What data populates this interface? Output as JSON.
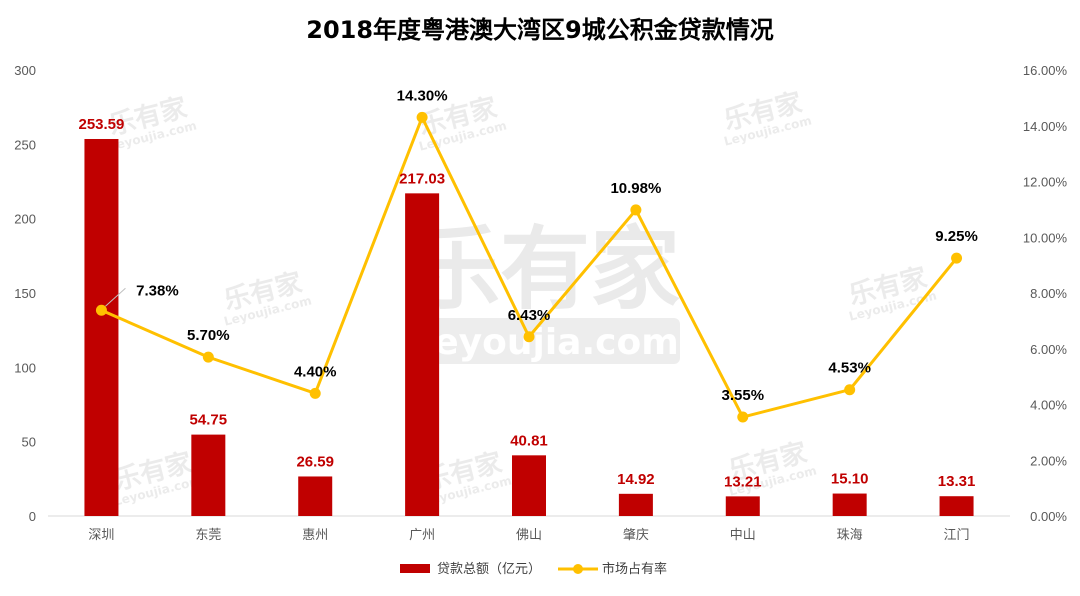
{
  "chart_data": {
    "type": "bar",
    "title": "2018年度粤港澳大湾区9城公积金贷款情况",
    "categories": [
      "深圳",
      "东莞",
      "惠州",
      "广州",
      "佛山",
      "肇庆",
      "中山",
      "珠海",
      "江门"
    ],
    "series": [
      {
        "name": "贷款总额（亿元）",
        "type": "bar",
        "axis": "left",
        "color": "#c00000",
        "values": [
          253.59,
          54.75,
          26.59,
          217.03,
          40.81,
          14.92,
          13.21,
          15.1,
          13.31
        ],
        "labels": [
          "253.59",
          "54.75",
          "26.59",
          "217.03",
          "40.81",
          "14.92",
          "13.21",
          "15.10",
          "13.31"
        ]
      },
      {
        "name": "市场占有率",
        "type": "line",
        "axis": "right",
        "color": "#ffc000",
        "values": [
          7.38,
          5.7,
          4.4,
          14.3,
          6.43,
          10.98,
          3.55,
          4.53,
          9.25
        ],
        "labels": [
          "7.38%",
          "5.70%",
          "4.40%",
          "14.30%",
          "6.43%",
          "10.98%",
          "3.55%",
          "4.53%",
          "9.25%"
        ]
      }
    ],
    "y_left": {
      "range": [
        0,
        300
      ],
      "ticks": [
        "0",
        "50",
        "100",
        "150",
        "200",
        "250",
        "300"
      ]
    },
    "y_right": {
      "range": [
        0,
        16
      ],
      "ticks": [
        "0.00%",
        "2.00%",
        "4.00%",
        "6.00%",
        "8.00%",
        "10.00%",
        "12.00%",
        "14.00%",
        "16.00%"
      ]
    },
    "grid": false,
    "legend_position": "bottom"
  },
  "watermark": {
    "brand": "乐有家",
    "domain": "Leyoujia.com"
  }
}
